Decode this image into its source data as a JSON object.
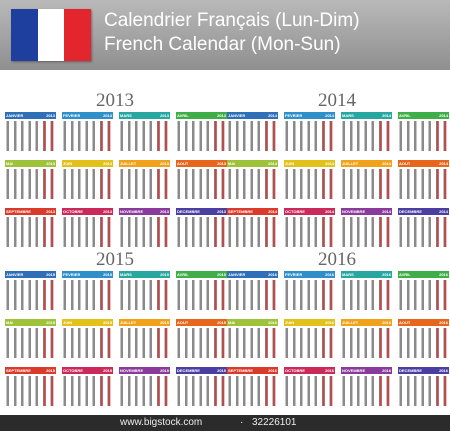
{
  "header": {
    "title_fr": "Calendrier Français (Lun-Dim)",
    "title_en": "French Calendar (Mon-Sun)",
    "flag_colors": [
      "#1f3f9e",
      "#ffffff",
      "#e3262e"
    ]
  },
  "years": [
    {
      "year": "2013",
      "months": [
        {
          "name": "JANVIER",
          "year": "2013"
        },
        {
          "name": "FEVRIER",
          "year": "2013"
        },
        {
          "name": "MARS",
          "year": "2013"
        },
        {
          "name": "AVRIL",
          "year": "2013"
        },
        {
          "name": "MAI",
          "year": "2013"
        },
        {
          "name": "JUIN",
          "year": "2013"
        },
        {
          "name": "JUILLET",
          "year": "2013"
        },
        {
          "name": "AOUT",
          "year": "2013"
        },
        {
          "name": "SEPTEMBRE",
          "year": "2013"
        },
        {
          "name": "OCTOBRE",
          "year": "2013"
        },
        {
          "name": "NOVEMBRE",
          "year": "2013"
        },
        {
          "name": "DECEMBRE",
          "year": "2013"
        }
      ]
    },
    {
      "year": "2014",
      "months": [
        {
          "name": "JANVIER",
          "year": "2014"
        },
        {
          "name": "FEVRIER",
          "year": "2014"
        },
        {
          "name": "MARS",
          "year": "2014"
        },
        {
          "name": "AVRIL",
          "year": "2014"
        },
        {
          "name": "MAI",
          "year": "2014"
        },
        {
          "name": "JUIN",
          "year": "2014"
        },
        {
          "name": "JUILLET",
          "year": "2014"
        },
        {
          "name": "AOUT",
          "year": "2014"
        },
        {
          "name": "SEPTEMBRE",
          "year": "2014"
        },
        {
          "name": "OCTOBRE",
          "year": "2014"
        },
        {
          "name": "NOVEMBRE",
          "year": "2014"
        },
        {
          "name": "DECEMBRE",
          "year": "2014"
        }
      ]
    },
    {
      "year": "2015",
      "months": [
        {
          "name": "JANVIER",
          "year": "2015"
        },
        {
          "name": "FEVRIER",
          "year": "2015"
        },
        {
          "name": "MARS",
          "year": "2015"
        },
        {
          "name": "AVRIL",
          "year": "2015"
        },
        {
          "name": "MAI",
          "year": "2015"
        },
        {
          "name": "JUIN",
          "year": "2015"
        },
        {
          "name": "JUILLET",
          "year": "2015"
        },
        {
          "name": "AOUT",
          "year": "2015"
        },
        {
          "name": "SEPTEMBRE",
          "year": "2015"
        },
        {
          "name": "OCTOBRE",
          "year": "2015"
        },
        {
          "name": "NOVEMBRE",
          "year": "2015"
        },
        {
          "name": "DECEMBRE",
          "year": "2015"
        }
      ]
    },
    {
      "year": "2016",
      "months": [
        {
          "name": "JANVIER",
          "year": "2016"
        },
        {
          "name": "FEVRIER",
          "year": "2016"
        },
        {
          "name": "MARS",
          "year": "2016"
        },
        {
          "name": "AVRIL",
          "year": "2016"
        },
        {
          "name": "MAI",
          "year": "2016"
        },
        {
          "name": "JUIN",
          "year": "2016"
        },
        {
          "name": "JUILLET",
          "year": "2016"
        },
        {
          "name": "AOUT",
          "year": "2016"
        },
        {
          "name": "SEPTEMBRE",
          "year": "2016"
        },
        {
          "name": "OCTOBRE",
          "year": "2016"
        },
        {
          "name": "NOVEMBRE",
          "year": "2016"
        },
        {
          "name": "DECEMBRE",
          "year": "2016"
        }
      ]
    }
  ],
  "month_colors": [
    "#2f6fb8",
    "#2f8fc8",
    "#27a7a0",
    "#3fae49",
    "#9ec23a",
    "#e2c21a",
    "#f0a21a",
    "#e8651c",
    "#d93a2a",
    "#c92a5a",
    "#8a3a9a",
    "#4a3fa0"
  ],
  "footer": {
    "url": "www.bigstock.com",
    "sep": "·",
    "id": "32226101"
  }
}
